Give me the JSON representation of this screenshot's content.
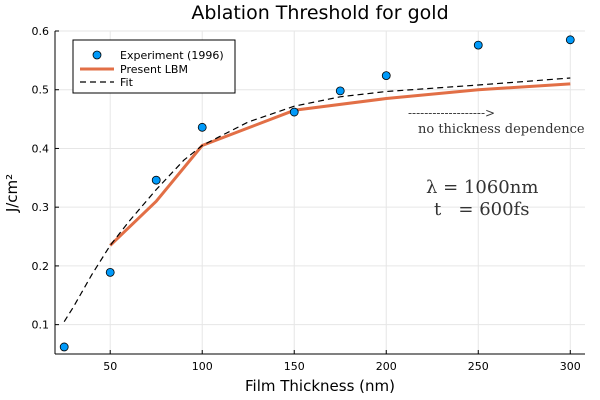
{
  "chart_data": {
    "type": "scatter",
    "title": "Ablation Threshold for gold",
    "xlabel": "Film Thickness (nm)",
    "ylabel": "J/cm²",
    "xlim": [
      20,
      308
    ],
    "ylim": [
      0.05,
      0.6
    ],
    "x_ticks": [
      50,
      100,
      150,
      200,
      250,
      300
    ],
    "y_ticks": [
      0.1,
      0.2,
      0.3,
      0.4,
      0.5,
      0.6
    ],
    "grid": true,
    "legend_position": "top-left",
    "series": [
      {
        "name": "Experiment (1996)",
        "kind": "scatter",
        "color": "#009AFA",
        "x": [
          25,
          50,
          75,
          100,
          150,
          175,
          200,
          250,
          300
        ],
        "y": [
          0.062,
          0.189,
          0.346,
          0.436,
          0.462,
          0.498,
          0.524,
          0.576,
          0.585
        ]
      },
      {
        "name": "Present LBM",
        "kind": "line",
        "color": "#E26F46",
        "x": [
          50,
          75,
          100,
          150,
          200,
          250,
          300
        ],
        "y": [
          0.235,
          0.31,
          0.405,
          0.465,
          0.485,
          0.5,
          0.51
        ]
      },
      {
        "name": "Fit",
        "kind": "dashed",
        "color": "#000000",
        "x": [
          25,
          30,
          40,
          50,
          60,
          75,
          90,
          100,
          125,
          150,
          175,
          200,
          250,
          300
        ],
        "y": [
          0.105,
          0.13,
          0.185,
          0.235,
          0.275,
          0.33,
          0.38,
          0.405,
          0.445,
          0.472,
          0.488,
          0.497,
          0.508,
          0.52
        ]
      }
    ],
    "annotations": {
      "arrow_text": "------------------->",
      "note": "no thickness dependence",
      "lambda_line": "λ = 1060nm",
      "t_line": "t   = 600fs"
    }
  }
}
